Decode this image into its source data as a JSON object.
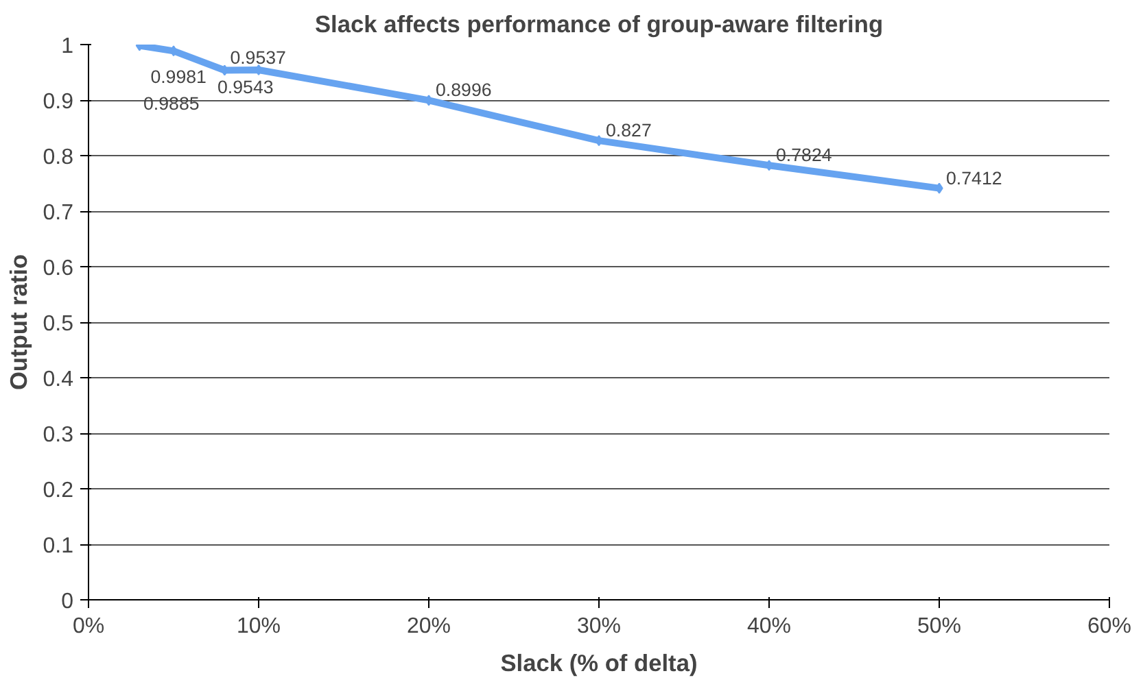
{
  "chart_data": {
    "type": "line",
    "title": "Slack affects performance of group-aware filtering",
    "xlabel": "Slack (% of delta)",
    "ylabel": "Output ratio",
    "x": [
      3,
      5,
      8,
      10,
      20,
      30,
      40,
      50
    ],
    "values": [
      0.9981,
      0.9885,
      0.9537,
      0.9543,
      0.8996,
      0.827,
      0.7824,
      0.7412
    ],
    "color": "#66a3f0",
    "marker": "diamond",
    "line_style": "solid",
    "data_labels": true,
    "grid": "y",
    "legend": false,
    "xlim": [
      0,
      60
    ],
    "xticks": [
      {
        "value": 0,
        "label": "0%"
      },
      {
        "value": 10,
        "label": "10%"
      },
      {
        "value": 20,
        "label": "20%"
      },
      {
        "value": 30,
        "label": "30%"
      },
      {
        "value": 40,
        "label": "40%"
      },
      {
        "value": 50,
        "label": "50%"
      },
      {
        "value": 60,
        "label": "60%"
      }
    ],
    "ylim": [
      0,
      1
    ],
    "yticks": [
      0,
      0.1,
      0.2,
      0.3,
      0.4,
      0.5,
      0.6,
      0.7,
      0.8,
      0.9,
      1
    ]
  }
}
